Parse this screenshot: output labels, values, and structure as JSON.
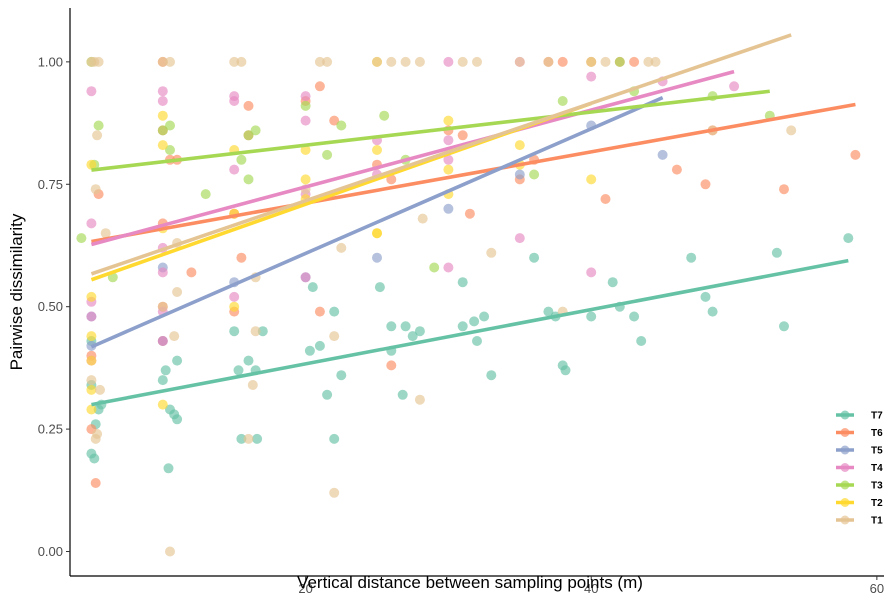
{
  "chart_data": {
    "type": "scatter",
    "title": "",
    "xlabel": "Vertical distance  between sampling points (m)",
    "ylabel": "Pairwise dissimilarity",
    "xlim": [
      3.5,
      60.5
    ],
    "ylim": [
      -0.05,
      1.11
    ],
    "xticks": [
      20,
      40,
      60
    ],
    "yticks": [
      0.0,
      0.25,
      0.5,
      0.75,
      1.0
    ],
    "ytick_labels": [
      "0.00",
      "0.25",
      "0.50",
      "0.75",
      "1.00"
    ],
    "grid": false,
    "legend_position": "bottom-right",
    "series": [
      {
        "name": "T7",
        "color": "#66C2A5",
        "points": [
          [
            5,
            0.2
          ],
          [
            5.2,
            0.19
          ],
          [
            5.5,
            0.29
          ],
          [
            5,
            0.34
          ],
          [
            5.3,
            0.26
          ],
          [
            5.7,
            0.3
          ],
          [
            5,
            0.43
          ],
          [
            10.5,
            0.29
          ],
          [
            10.8,
            0.28
          ],
          [
            11,
            0.27
          ],
          [
            10.4,
            0.17
          ],
          [
            11,
            0.39
          ],
          [
            10,
            0.35
          ],
          [
            10.2,
            0.37
          ],
          [
            15.3,
            0.37
          ],
          [
            15.5,
            0.23
          ],
          [
            16,
            0.39
          ],
          [
            16.5,
            0.37
          ],
          [
            16.6,
            0.23
          ],
          [
            15,
            0.45
          ],
          [
            17,
            0.45
          ],
          [
            20.3,
            0.41
          ],
          [
            21,
            0.42
          ],
          [
            21.5,
            0.32
          ],
          [
            22,
            0.23
          ],
          [
            22,
            0.49
          ],
          [
            20.5,
            0.54
          ],
          [
            22.5,
            0.36
          ],
          [
            25.2,
            0.54
          ],
          [
            26,
            0.41
          ],
          [
            26,
            0.46
          ],
          [
            27,
            0.46
          ],
          [
            27.5,
            0.44
          ],
          [
            26.8,
            0.32
          ],
          [
            28,
            0.45
          ],
          [
            31,
            0.55
          ],
          [
            31,
            0.46
          ],
          [
            31.8,
            0.47
          ],
          [
            32,
            0.43
          ],
          [
            32.5,
            0.48
          ],
          [
            33,
            0.36
          ],
          [
            36,
            0.6
          ],
          [
            37,
            0.49
          ],
          [
            37.5,
            0.48
          ],
          [
            38,
            0.38
          ],
          [
            38.2,
            0.37
          ],
          [
            40,
            0.48
          ],
          [
            41.5,
            0.55
          ],
          [
            42,
            0.5
          ],
          [
            43,
            0.48
          ],
          [
            43.5,
            0.43
          ],
          [
            47,
            0.6
          ],
          [
            48,
            0.52
          ],
          [
            48.5,
            0.49
          ],
          [
            53,
            0.61
          ],
          [
            53.5,
            0.46
          ],
          [
            58,
            0.64
          ]
        ],
        "fit": [
          [
            5,
            0.3
          ],
          [
            58,
            0.594
          ]
        ]
      },
      {
        "name": "T6",
        "color": "#FC8D62",
        "points": [
          [
            5,
            0.25
          ],
          [
            5.3,
            0.14
          ],
          [
            5.5,
            0.73
          ],
          [
            5,
            0.4
          ],
          [
            10,
            1.0
          ],
          [
            10,
            0.5
          ],
          [
            10,
            0.86
          ],
          [
            10.5,
            0.8
          ],
          [
            11,
            0.8
          ],
          [
            10,
            0.67
          ],
          [
            10,
            0.43
          ],
          [
            12,
            0.57
          ],
          [
            15,
            0.69
          ],
          [
            15,
            0.49
          ],
          [
            15.5,
            0.6
          ],
          [
            16,
            0.91
          ],
          [
            16,
            0.85
          ],
          [
            20,
            0.92
          ],
          [
            21,
            0.95
          ],
          [
            22,
            0.88
          ],
          [
            21,
            0.49
          ],
          [
            25,
            0.79
          ],
          [
            26,
            0.76
          ],
          [
            26,
            0.38
          ],
          [
            30,
            0.86
          ],
          [
            31,
            0.85
          ],
          [
            31.5,
            0.69
          ],
          [
            35,
            0.76
          ],
          [
            36,
            0.8
          ],
          [
            37,
            1.0
          ],
          [
            38,
            1.0
          ],
          [
            41,
            0.72
          ],
          [
            42,
            1.0
          ],
          [
            43,
            1.0
          ],
          [
            46,
            0.78
          ],
          [
            48,
            0.75
          ],
          [
            48.5,
            0.86
          ],
          [
            53.5,
            0.74
          ],
          [
            58.5,
            0.81
          ]
        ],
        "fit": [
          [
            5,
            0.633
          ],
          [
            58.5,
            0.913
          ]
        ]
      },
      {
        "name": "T5",
        "color": "#8DA0CB",
        "points": [
          [
            5,
            0.48
          ],
          [
            5,
            0.42
          ],
          [
            10,
            0.43
          ],
          [
            10,
            0.58
          ],
          [
            15,
            0.55
          ],
          [
            20,
            0.56
          ],
          [
            25,
            0.6
          ],
          [
            30,
            0.7
          ],
          [
            35,
            0.77
          ],
          [
            40,
            0.87
          ],
          [
            45,
            0.81
          ]
        ],
        "fit": [
          [
            5,
            0.418
          ],
          [
            45,
            0.927
          ]
        ]
      },
      {
        "name": "T4",
        "color": "#E78AC3",
        "points": [
          [
            5,
            0.94
          ],
          [
            5,
            0.67
          ],
          [
            5,
            0.51
          ],
          [
            5,
            0.48
          ],
          [
            5,
            0.39
          ],
          [
            10,
            0.94
          ],
          [
            10,
            0.92
          ],
          [
            10,
            0.62
          ],
          [
            10,
            0.57
          ],
          [
            10,
            0.49
          ],
          [
            10,
            0.43
          ],
          [
            15,
            0.93
          ],
          [
            15,
            0.92
          ],
          [
            15,
            0.78
          ],
          [
            15,
            0.52
          ],
          [
            20,
            0.93
          ],
          [
            20,
            0.88
          ],
          [
            20,
            0.73
          ],
          [
            20,
            0.56
          ],
          [
            25,
            0.84
          ],
          [
            25,
            0.77
          ],
          [
            30,
            1.0
          ],
          [
            30,
            0.84
          ],
          [
            30,
            0.8
          ],
          [
            30,
            0.58
          ],
          [
            35,
            1.0
          ],
          [
            35,
            0.64
          ],
          [
            40,
            1.0
          ],
          [
            40,
            0.97
          ],
          [
            40,
            0.57
          ],
          [
            45,
            0.96
          ],
          [
            50,
            0.95
          ]
        ],
        "fit": [
          [
            5,
            0.627
          ],
          [
            50,
            0.98
          ]
        ]
      },
      {
        "name": "T3",
        "color": "#A6D854",
        "points": [
          [
            4.3,
            0.64
          ],
          [
            5,
            1.0
          ],
          [
            5.5,
            0.87
          ],
          [
            5.2,
            0.79
          ],
          [
            6.5,
            0.56
          ],
          [
            10,
            0.86
          ],
          [
            10.5,
            0.87
          ],
          [
            10.5,
            0.82
          ],
          [
            13,
            0.73
          ],
          [
            15.5,
            0.8
          ],
          [
            16,
            0.85
          ],
          [
            16,
            0.76
          ],
          [
            16.5,
            0.86
          ],
          [
            20,
            0.91
          ],
          [
            21.5,
            0.81
          ],
          [
            22.5,
            0.87
          ],
          [
            25.5,
            0.89
          ],
          [
            27,
            0.8
          ],
          [
            29,
            0.58
          ],
          [
            36,
            0.77
          ],
          [
            38,
            0.92
          ],
          [
            42,
            1.0
          ],
          [
            43,
            0.94
          ],
          [
            48.5,
            0.93
          ],
          [
            52.5,
            0.89
          ]
        ],
        "fit": [
          [
            5,
            0.779
          ],
          [
            52.5,
            0.94
          ]
        ]
      },
      {
        "name": "T2",
        "color": "#FFD92F",
        "points": [
          [
            5,
            0.52
          ],
          [
            5,
            0.44
          ],
          [
            5,
            0.39
          ],
          [
            5,
            0.33
          ],
          [
            5,
            0.29
          ],
          [
            5,
            0.79
          ],
          [
            10,
            0.89
          ],
          [
            10,
            0.83
          ],
          [
            10,
            0.66
          ],
          [
            10,
            0.3
          ],
          [
            15,
            0.82
          ],
          [
            15,
            0.69
          ],
          [
            15,
            0.5
          ],
          [
            20,
            0.82
          ],
          [
            20,
            0.76
          ],
          [
            20,
            0.72
          ],
          [
            25,
            1.0
          ],
          [
            25,
            0.82
          ],
          [
            25,
            0.65
          ],
          [
            25,
            0.65
          ],
          [
            30,
            0.88
          ],
          [
            30,
            0.78
          ],
          [
            30,
            0.73
          ],
          [
            35,
            0.83
          ],
          [
            35,
            0.79
          ],
          [
            40,
            1.0
          ],
          [
            40,
            0.76
          ]
        ],
        "fit": [
          [
            5,
            0.555
          ],
          [
            40,
            0.915
          ]
        ]
      },
      {
        "name": "T1",
        "color": "#E5C494",
        "points": [
          [
            5,
            1.0
          ],
          [
            5.2,
            1.0
          ],
          [
            5.5,
            1.0
          ],
          [
            5.4,
            0.85
          ],
          [
            5.3,
            0.74
          ],
          [
            6,
            0.65
          ],
          [
            5,
            0.35
          ],
          [
            5.6,
            0.33
          ],
          [
            5.4,
            0.24
          ],
          [
            5.3,
            0.23
          ],
          [
            10,
            1.0
          ],
          [
            10.5,
            1.0
          ],
          [
            11,
            0.63
          ],
          [
            11,
            0.53
          ],
          [
            10.8,
            0.44
          ],
          [
            10,
            0.5
          ],
          [
            10.5,
            0.0
          ],
          [
            15,
            1.0
          ],
          [
            15.5,
            1.0
          ],
          [
            16.5,
            0.56
          ],
          [
            16.5,
            0.45
          ],
          [
            16.3,
            0.34
          ],
          [
            16,
            0.23
          ],
          [
            20,
            0.74
          ],
          [
            21,
            1.0
          ],
          [
            21.5,
            1.0
          ],
          [
            22.5,
            0.62
          ],
          [
            22,
            0.44
          ],
          [
            22,
            0.12
          ],
          [
            25,
            1.0
          ],
          [
            26,
            1.0
          ],
          [
            27,
            1.0
          ],
          [
            28,
            1.0
          ],
          [
            28.2,
            0.68
          ],
          [
            28,
            0.31
          ],
          [
            31,
            1.0
          ],
          [
            32,
            1.0
          ],
          [
            33,
            0.61
          ],
          [
            35,
            1.0
          ],
          [
            37,
            1.0
          ],
          [
            38,
            0.49
          ],
          [
            40,
            1.0
          ],
          [
            41,
            1.0
          ],
          [
            44,
            1.0
          ],
          [
            44.5,
            1.0
          ],
          [
            48.5,
            0.86
          ],
          [
            54,
            0.86
          ]
        ],
        "fit": [
          [
            5,
            0.567
          ],
          [
            54,
            1.055
          ]
        ]
      }
    ]
  }
}
